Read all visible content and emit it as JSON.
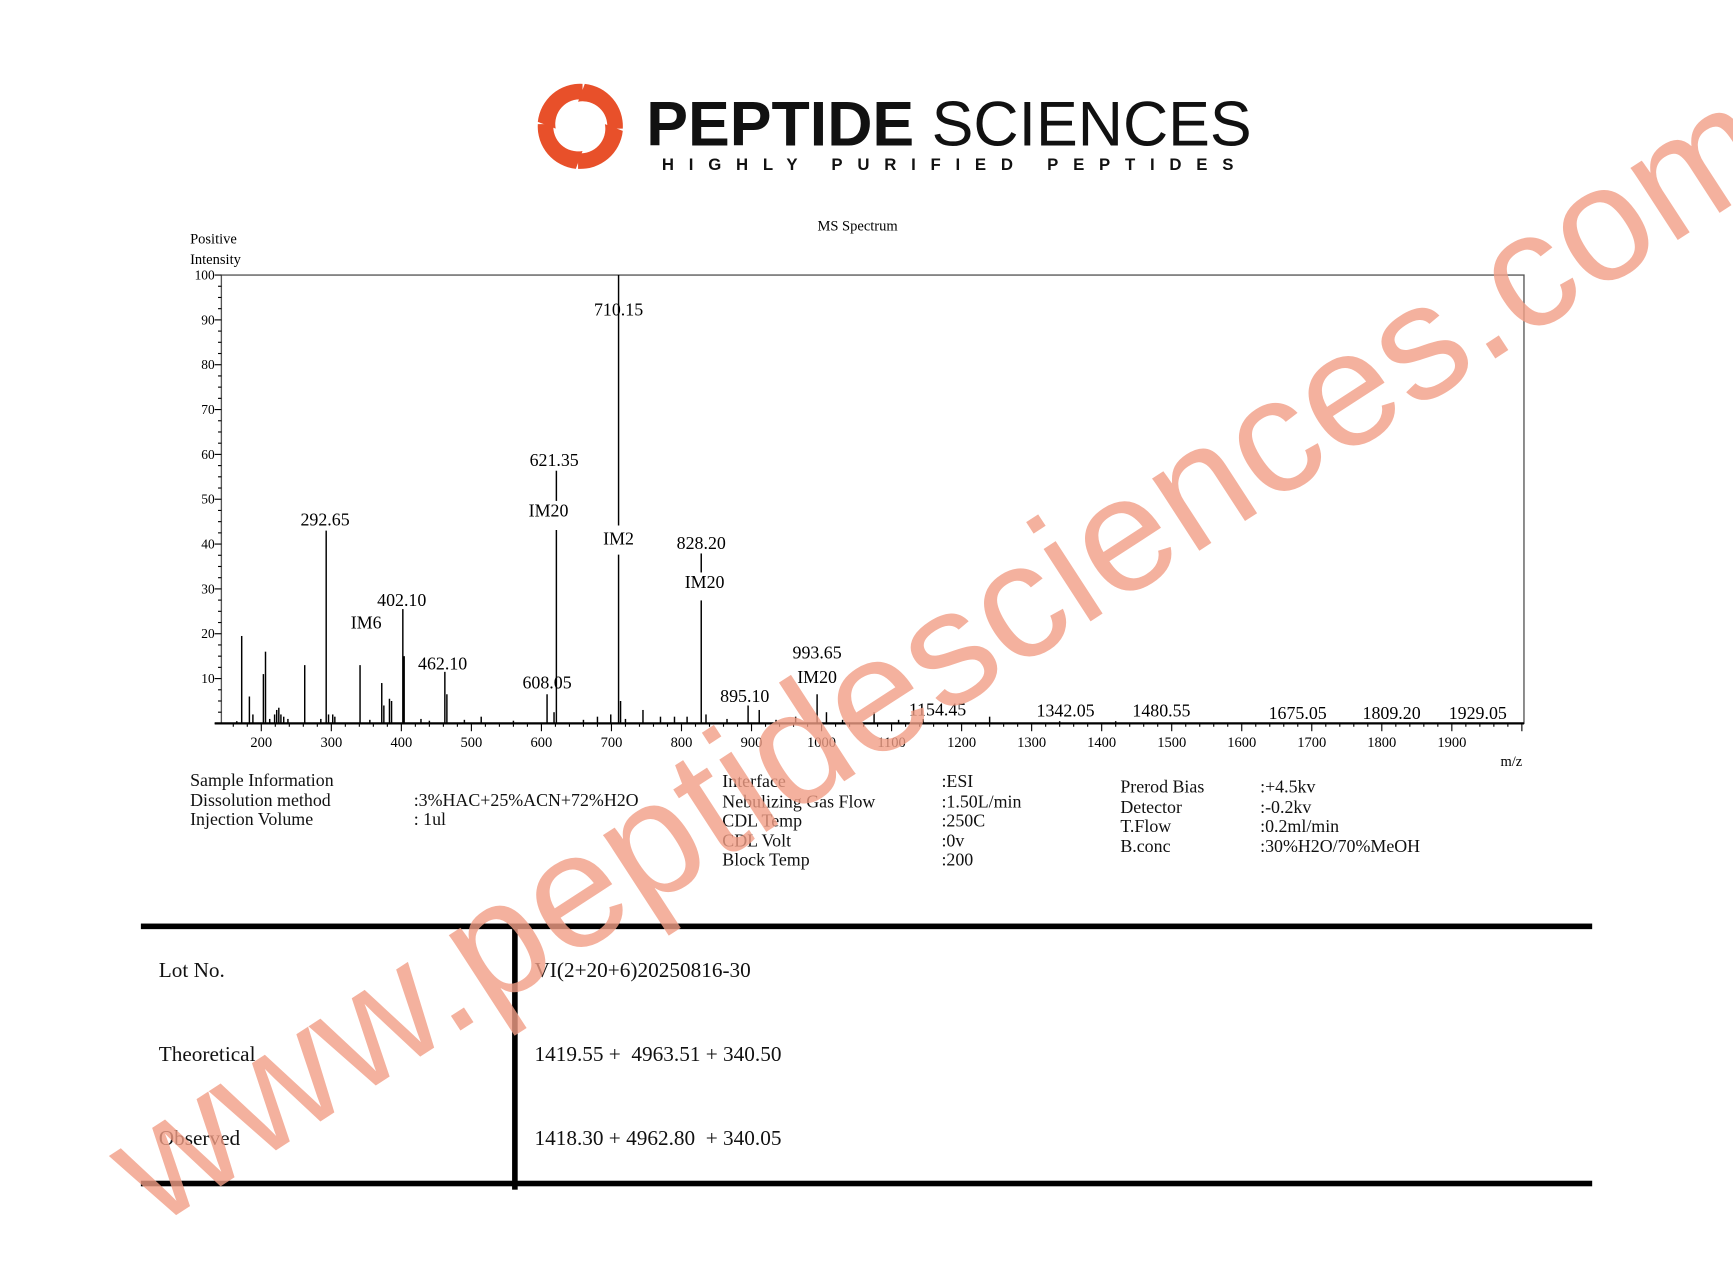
{
  "brand": {
    "name_bold": "PEPTIDE",
    "name_regular": " SCIENCES",
    "tagline": "HIGHLY PURIFIED PEPTIDES",
    "logo_color": "#e8502a"
  },
  "watermark": "www.peptidesciences.com",
  "chart_data": {
    "type": "bar",
    "title": "MS Spectrum",
    "ylabel_line1": "Positive",
    "ylabel_line2": "Intensity",
    "xlabel": "m/z",
    "xlim": [
      143,
      2003
    ],
    "ylim": [
      0,
      100
    ],
    "xticks": [
      200,
      300,
      400,
      500,
      600,
      700,
      800,
      900,
      1000,
      1100,
      1200,
      1300,
      1400,
      1500,
      1600,
      1700,
      1800,
      1900
    ],
    "yticks": [
      10,
      20,
      30,
      40,
      50,
      60,
      70,
      80,
      90,
      100
    ],
    "grid": false,
    "peaks": [
      [
        165,
        0.5
      ],
      [
        172,
        19.5
      ],
      [
        183,
        6
      ],
      [
        188,
        2
      ],
      [
        203,
        11
      ],
      [
        206,
        16
      ],
      [
        212,
        1
      ],
      [
        219,
        2
      ],
      [
        222,
        3
      ],
      [
        225,
        3.5
      ],
      [
        228,
        2
      ],
      [
        232,
        1.5
      ],
      [
        238,
        1
      ],
      [
        262,
        13
      ],
      [
        285,
        1
      ],
      [
        292.65,
        43
      ],
      [
        296,
        2
      ],
      [
        302,
        2
      ],
      [
        305,
        1.5
      ],
      [
        341,
        13
      ],
      [
        355,
        0.8
      ],
      [
        372,
        9
      ],
      [
        375,
        4
      ],
      [
        383,
        5.5
      ],
      [
        386,
        5
      ],
      [
        402.1,
        25.5
      ],
      [
        404,
        15
      ],
      [
        428,
        1
      ],
      [
        440,
        0.6
      ],
      [
        462.1,
        11.5
      ],
      [
        465,
        6.5
      ],
      [
        490,
        0.8
      ],
      [
        514,
        1.5
      ],
      [
        560,
        0.6
      ],
      [
        608.05,
        6.5
      ],
      [
        618,
        2.5
      ],
      [
        621.35,
        43.5
      ],
      [
        660,
        0.8
      ],
      [
        680,
        1.5
      ],
      [
        699,
        2
      ],
      [
        710.15,
        100
      ],
      [
        713,
        5
      ],
      [
        720,
        1
      ],
      [
        745,
        3
      ],
      [
        770,
        1.5
      ],
      [
        790,
        1.5
      ],
      [
        808,
        1.5
      ],
      [
        828.2,
        28
      ],
      [
        835,
        2
      ],
      [
        865,
        1
      ],
      [
        895.1,
        4
      ],
      [
        911,
        3
      ],
      [
        935,
        0.8
      ],
      [
        963,
        1.5
      ],
      [
        993.65,
        6.5
      ],
      [
        1007,
        2.5
      ],
      [
        1030,
        0.8
      ],
      [
        1075,
        2.5
      ],
      [
        1110,
        0.8
      ],
      [
        1145,
        1
      ],
      [
        1240,
        1.5
      ],
      [
        1340,
        0.5
      ],
      [
        1420,
        0.5
      ]
    ],
    "annotations": [
      {
        "mz": 292.65,
        "label": "292.65",
        "tag": "IM6"
      },
      {
        "mz": 402.1,
        "label": "402.10",
        "tag": ""
      },
      {
        "mz": 462.1,
        "label": "462.10",
        "tag": ""
      },
      {
        "mz": 608.05,
        "label": "608.05",
        "tag": ""
      },
      {
        "mz": 621.35,
        "label": "621.35",
        "tag": "IM20"
      },
      {
        "mz": 710.15,
        "label": "710.15",
        "tag": "IM2"
      },
      {
        "mz": 828.2,
        "label": "828.20",
        "tag": "IM20"
      },
      {
        "mz": 895.1,
        "label": "895.10",
        "tag": ""
      },
      {
        "mz": 993.65,
        "label": "993.65",
        "tag": "IM20"
      },
      {
        "mz": 1154.45,
        "label": "1154.45",
        "tag": ""
      },
      {
        "mz": 1342.05,
        "label": "1342.05",
        "tag": ""
      },
      {
        "mz": 1480.55,
        "label": "1480.55",
        "tag": ""
      },
      {
        "mz": 1675.05,
        "label": "1675.05",
        "tag": ""
      },
      {
        "mz": 1809.2,
        "label": "1809.20",
        "tag": ""
      },
      {
        "mz": 1929.05,
        "label": "1929.05",
        "tag": ""
      }
    ]
  },
  "sample_info": {
    "heading": "Sample Information",
    "rows": [
      {
        "label": "Dissolution method",
        "value": ":3%HAC+25%ACN+72%H2O"
      },
      {
        "label": "Injection Volume",
        "value": ": 1ul"
      }
    ]
  },
  "instrument_info": {
    "rows": [
      {
        "label": "Interface",
        "value": ":ESI"
      },
      {
        "label": "Nebulizing Gas Flow",
        "value": ":1.50L/min"
      },
      {
        "label": "CDL Temp",
        "value": ":250C"
      },
      {
        "label": "CDL Volt",
        "value": ":0v"
      },
      {
        "label": "Block Temp",
        "value": ":200"
      }
    ]
  },
  "detector_info": {
    "rows": [
      {
        "label": "Prerod Bias",
        "value": ":+4.5kv"
      },
      {
        "label": "Detector",
        "value": ":-0.2kv"
      },
      {
        "label": "T.Flow",
        "value": ":0.2ml/min"
      },
      {
        "label": "B.conc",
        "value": ":30%H2O/70%MeOH"
      }
    ]
  },
  "results_table": [
    {
      "label": "Lot No.",
      "value": "VI(2+20+6)20250816-30"
    },
    {
      "label": "Theoretical",
      "value": "1419.55 +  4963.51 + 340.50"
    },
    {
      "label": "Observed",
      "value": "1418.30 + 4962.80  + 340.05"
    }
  ]
}
